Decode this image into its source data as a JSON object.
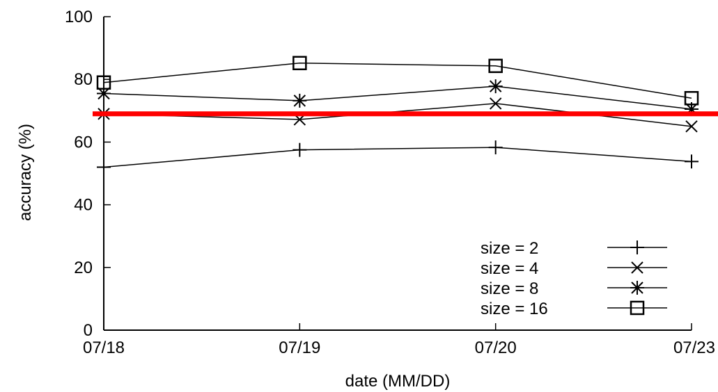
{
  "chart_data": {
    "type": "line",
    "xlabel": "date (MM/DD)",
    "ylabel": "accuracy (%)",
    "categories": [
      "07/18",
      "07/19",
      "07/20",
      "07/23"
    ],
    "yticks": [
      "0",
      "20",
      "40",
      "60",
      "80",
      "100"
    ],
    "ylim": [
      0,
      100
    ],
    "grid": false,
    "legend_position": "bottom-right",
    "series": [
      {
        "name": "size = 2",
        "marker": "plus",
        "values": [
          52,
          57.5,
          58.3,
          53.8
        ]
      },
      {
        "name": "size = 4",
        "marker": "cross",
        "values": [
          69,
          67.2,
          72.3,
          65
        ]
      },
      {
        "name": "size = 8",
        "marker": "star",
        "values": [
          75.5,
          73.2,
          77.8,
          70.5
        ]
      },
      {
        "name": "size = 16",
        "marker": "square",
        "values": [
          79,
          85.2,
          84.3,
          74
        ]
      }
    ],
    "reference_line": {
      "y": 69,
      "color": "#ff0000"
    },
    "line_color": "#000000"
  }
}
